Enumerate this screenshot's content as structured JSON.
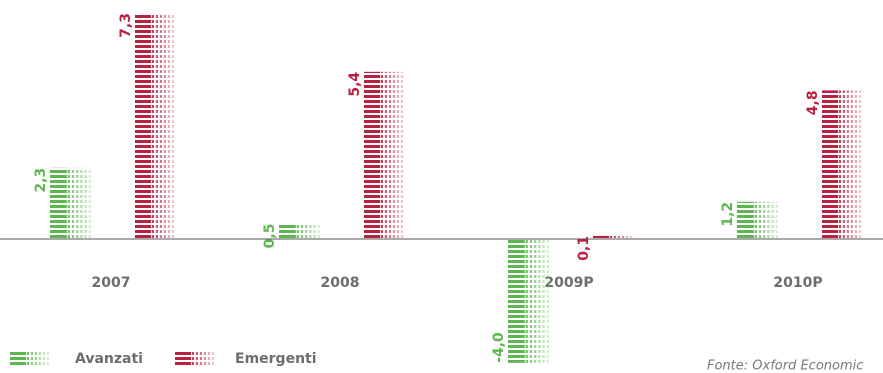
{
  "chart_data": {
    "type": "bar",
    "categories": [
      "2007",
      "2008",
      "2009P",
      "2010P"
    ],
    "series": [
      {
        "name": "Avanzati",
        "color": "#5cb84e",
        "values": [
          2.3,
          0.5,
          -4.0,
          1.2
        ],
        "value_labels": [
          "2,3",
          "0,5",
          "-4,0",
          "1,2"
        ]
      },
      {
        "name": "Emergenti",
        "color": "#b8213f",
        "values": [
          7.3,
          5.4,
          0.1,
          4.8
        ],
        "value_labels": [
          "7,3",
          "5,4",
          "0,1",
          "4,8"
        ]
      }
    ],
    "source": "Fonte: Oxford Economic"
  }
}
